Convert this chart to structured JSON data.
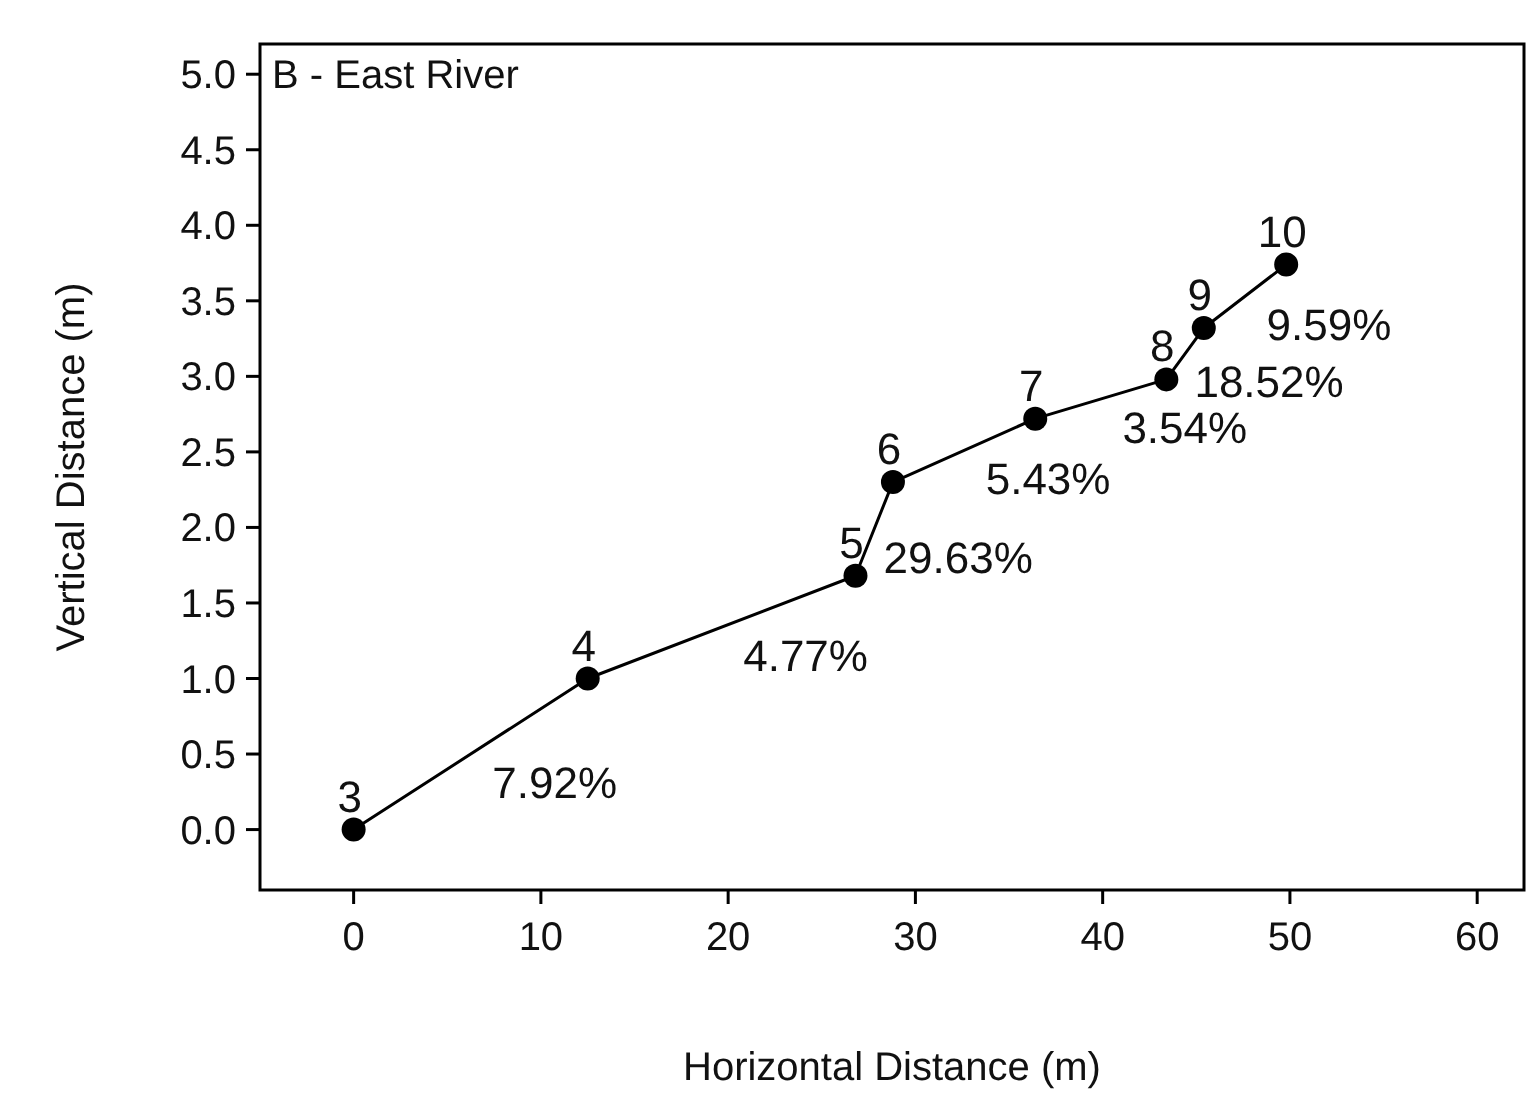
{
  "chart_data": {
    "type": "line",
    "title": "B - East River",
    "xlabel": "Horizontal Distance (m)",
    "ylabel": "Vertical Distance (m)",
    "x": [
      0,
      12.5,
      26.8,
      28.8,
      36.4,
      43.4,
      45.4,
      49.8
    ],
    "series": [
      {
        "color": "#000000",
        "values": [
          0,
          1.0,
          1.68,
          2.3,
          2.72,
          2.98,
          3.32,
          3.74
        ]
      }
    ],
    "xlim": [
      -5,
      62.5
    ],
    "xticks": [
      0,
      10,
      20,
      30,
      40,
      50,
      60
    ],
    "ylim": [
      -0.4,
      5.2
    ],
    "yticks": [
      {
        "value": 0,
        "label": "0.0"
      },
      {
        "value": 0.5,
        "label": "0.5"
      },
      {
        "value": 1,
        "label": "1.0"
      },
      {
        "value": 1.5,
        "label": "1.5"
      },
      {
        "value": 2,
        "label": "2.0"
      },
      {
        "value": 2.5,
        "label": "2.5"
      },
      {
        "value": 3,
        "label": "3.0"
      },
      {
        "value": 3.5,
        "label": "3.5"
      },
      {
        "value": 4,
        "label": "4.0"
      },
      {
        "value": 4.5,
        "label": "4.5"
      },
      {
        "value": 5,
        "label": "5.0"
      }
    ],
    "grid": false,
    "marker": "circle",
    "line_style": "solid",
    "annotations": [
      {
        "text": "3",
        "x": 0,
        "y": 0
      },
      {
        "text": "4",
        "x": 12.5,
        "y": 1.0
      },
      {
        "text": "5",
        "x": 26.8,
        "y": 1.68
      },
      {
        "text": "6",
        "x": 28.8,
        "y": 2.3
      },
      {
        "text": "7",
        "x": 36.4,
        "y": 2.72
      },
      {
        "text": "8",
        "x": 43.4,
        "y": 2.98
      },
      {
        "text": "9",
        "x": 45.4,
        "y": 3.32
      },
      {
        "text": "10",
        "x": 49.8,
        "y": 3.74
      },
      {
        "text": "7.92%",
        "x": 6.25,
        "y": 0.5
      },
      {
        "text": "4.77%",
        "x": 19.65,
        "y": 1.34
      },
      {
        "text": "29.63%",
        "x": 27.8,
        "y": 1.99
      },
      {
        "text": "5.43%",
        "x": 32.6,
        "y": 2.51
      },
      {
        "text": "3.54%",
        "x": 39.9,
        "y": 2.85
      },
      {
        "text": "18.52%",
        "x": 44.4,
        "y": 3.15
      },
      {
        "text": "9.59%",
        "x": 47.6,
        "y": 3.53
      }
    ]
  }
}
